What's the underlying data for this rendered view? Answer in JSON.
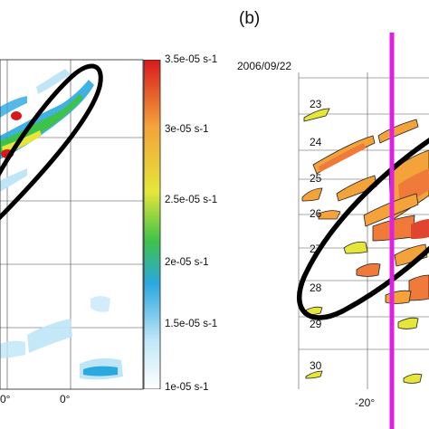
{
  "panel_b_label": "(b)",
  "colorbar": {
    "ticks": [
      "3.5e-05 s-1",
      "3e-05 s-1",
      "2.5e-05 s-1",
      "2e-05 s-1",
      "1.5e-05 s-1",
      "1e-05 s-1"
    ],
    "colors": [
      "#d7191c",
      "#f4a23a",
      "#e6e63a",
      "#3ec24a",
      "#2aa8e0",
      "#bfe6f7",
      "#ffffff"
    ]
  },
  "panel_a": {
    "x_ticks": [
      "0°",
      "0°"
    ]
  },
  "panel_b": {
    "date_label": "2006/09/22",
    "y_ticks": [
      "23",
      "24",
      "25",
      "26",
      "27",
      "28",
      "29",
      "30"
    ],
    "x_ticks": [
      "-20°"
    ]
  },
  "colors": {
    "marker_line": "#e020e0",
    "ellipse": "#000000",
    "grid": "#444444"
  }
}
